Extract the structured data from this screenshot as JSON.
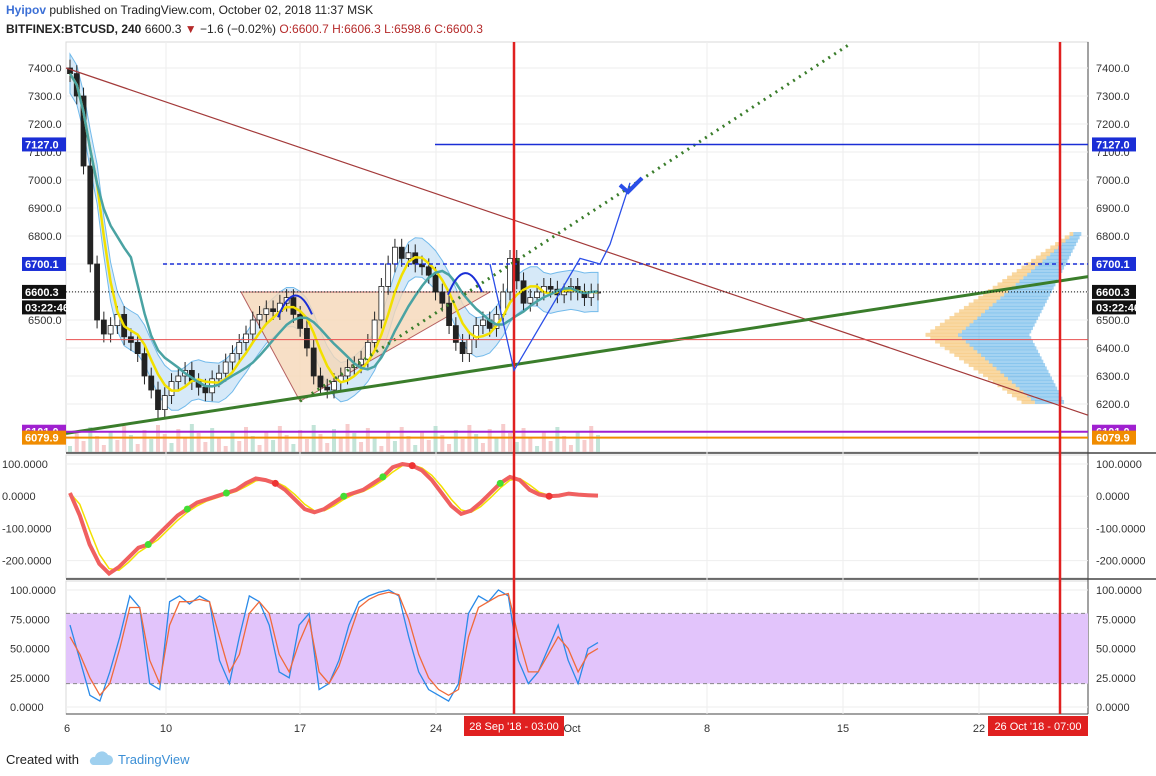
{
  "header": {
    "author": "Hyipov",
    "published_text": "published on TradingView.com, October 02, 2018 11:37 MSK",
    "symbol": "BITFINEX:BTCUSD, 240",
    "last": "6600.3",
    "change_arrow": "▼",
    "change": "−1.6 (−0.02%)",
    "ohlc": {
      "o": "O:6600.7",
      "h": "H:6606.3",
      "l": "L:6598.6",
      "c": "C:6600.3"
    }
  },
  "footer": {
    "created_with": "Created with",
    "brand": "TradingView"
  },
  "colors": {
    "up_candle": "#ffffff",
    "down_candle": "#222222",
    "trend_green": "#3a7d2b",
    "trend_red": "#a33a3a",
    "vertical_red": "#e02020",
    "level_blue": "#1a2ed6",
    "level_purple": "#a020d0",
    "level_orange": "#f08c00",
    "stoch_fill": "#e2c4fb",
    "bb_fill": "#cfe6f7",
    "triangle_fill": "#f6d8b8"
  },
  "chart_data": [
    {
      "type": "line",
      "name": "price-panel",
      "y_ticks": [
        "7400.0",
        "7300.0",
        "7200.0",
        "7100.0",
        "7000.0",
        "6900.0",
        "6800.0",
        "6700.0",
        "6600.0",
        "6500.0",
        "6400.0",
        "6300.0",
        "6200.0"
      ],
      "ylim": [
        6060,
        7440
      ],
      "x_ticks": [
        "10",
        "17",
        "24",
        "8",
        "15",
        "22"
      ],
      "x_tick_partial": [
        "6",
        "Oct"
      ],
      "price_labels": [
        {
          "text": "7127.0",
          "value": 7127,
          "color": "#1a2ed6"
        },
        {
          "text": "6700.1",
          "value": 6700.1,
          "color": "#1a2ed6"
        },
        {
          "text": "6600.3",
          "value": 6600.3,
          "color": "#111111"
        },
        {
          "text": "03:22:46",
          "value": 6545,
          "color": "#111111"
        },
        {
          "text": "6101.0",
          "value": 6101,
          "color": "#a020d0"
        },
        {
          "text": "6079.9",
          "value": 6079.9,
          "color": "#f08c00"
        }
      ],
      "vline_labels": [
        "28 Sep '18 - 03:00",
        "26 Oct '18 - 07:00"
      ],
      "close_series": [
        7380,
        7300,
        7050,
        6700,
        6500,
        6450,
        6480,
        6520,
        6440,
        6420,
        6380,
        6300,
        6250,
        6180,
        6230,
        6280,
        6300,
        6320,
        6280,
        6260,
        6240,
        6290,
        6310,
        6350,
        6380,
        6420,
        6450,
        6500,
        6520,
        6540,
        6530,
        6560,
        6580,
        6520,
        6470,
        6400,
        6300,
        6260,
        6250,
        6280,
        6300,
        6330,
        6340,
        6360,
        6420,
        6500,
        6620,
        6700,
        6760,
        6720,
        6740,
        6700,
        6690,
        6660,
        6600,
        6560,
        6480,
        6420,
        6380,
        6430,
        6480,
        6500,
        6470,
        6520,
        6600,
        6720,
        6640,
        6560,
        6580,
        6600,
        6620,
        6610,
        6590,
        6600,
        6620,
        6600,
        6580,
        6600,
        6600
      ]
    },
    {
      "type": "line",
      "name": "cci-panel",
      "y_ticks": [
        "100.0000",
        "0.0000",
        "-100.0000",
        "-200.0000"
      ],
      "ylim": [
        -250,
        110
      ],
      "values": [
        10,
        -60,
        -150,
        -210,
        -240,
        -220,
        -190,
        -160,
        -150,
        -120,
        -90,
        -60,
        -40,
        -20,
        -10,
        0,
        10,
        20,
        40,
        55,
        50,
        40,
        20,
        -10,
        -40,
        -50,
        -40,
        -20,
        0,
        10,
        20,
        40,
        60,
        90,
        100,
        95,
        80,
        50,
        10,
        -30,
        -55,
        -45,
        -20,
        10,
        40,
        60,
        50,
        20,
        5,
        0,
        2,
        8,
        5,
        3,
        2
      ]
    },
    {
      "type": "line",
      "name": "stoch-rsi-panel",
      "y_ticks": [
        "100.0000",
        "75.0000",
        "50.0000",
        "25.0000",
        "0.0000"
      ],
      "ylim": [
        -5,
        105
      ],
      "band": [
        20,
        80
      ],
      "k": [
        70,
        40,
        10,
        5,
        30,
        60,
        95,
        85,
        20,
        15,
        90,
        95,
        88,
        95,
        90,
        40,
        20,
        60,
        95,
        90,
        70,
        30,
        25,
        70,
        80,
        15,
        20,
        40,
        70,
        90,
        95,
        98,
        100,
        95,
        60,
        30,
        15,
        10,
        5,
        20,
        80,
        95,
        90,
        100,
        95,
        40,
        20,
        30,
        50,
        70,
        40,
        20,
        50,
        55
      ],
      "d": [
        60,
        45,
        25,
        10,
        20,
        50,
        85,
        85,
        40,
        20,
        70,
        90,
        90,
        92,
        90,
        60,
        30,
        45,
        80,
        90,
        80,
        45,
        30,
        55,
        75,
        30,
        20,
        35,
        60,
        85,
        92,
        96,
        98,
        96,
        75,
        45,
        25,
        15,
        10,
        15,
        60,
        85,
        90,
        95,
        97,
        60,
        30,
        30,
        45,
        60,
        50,
        30,
        45,
        50
      ]
    }
  ]
}
